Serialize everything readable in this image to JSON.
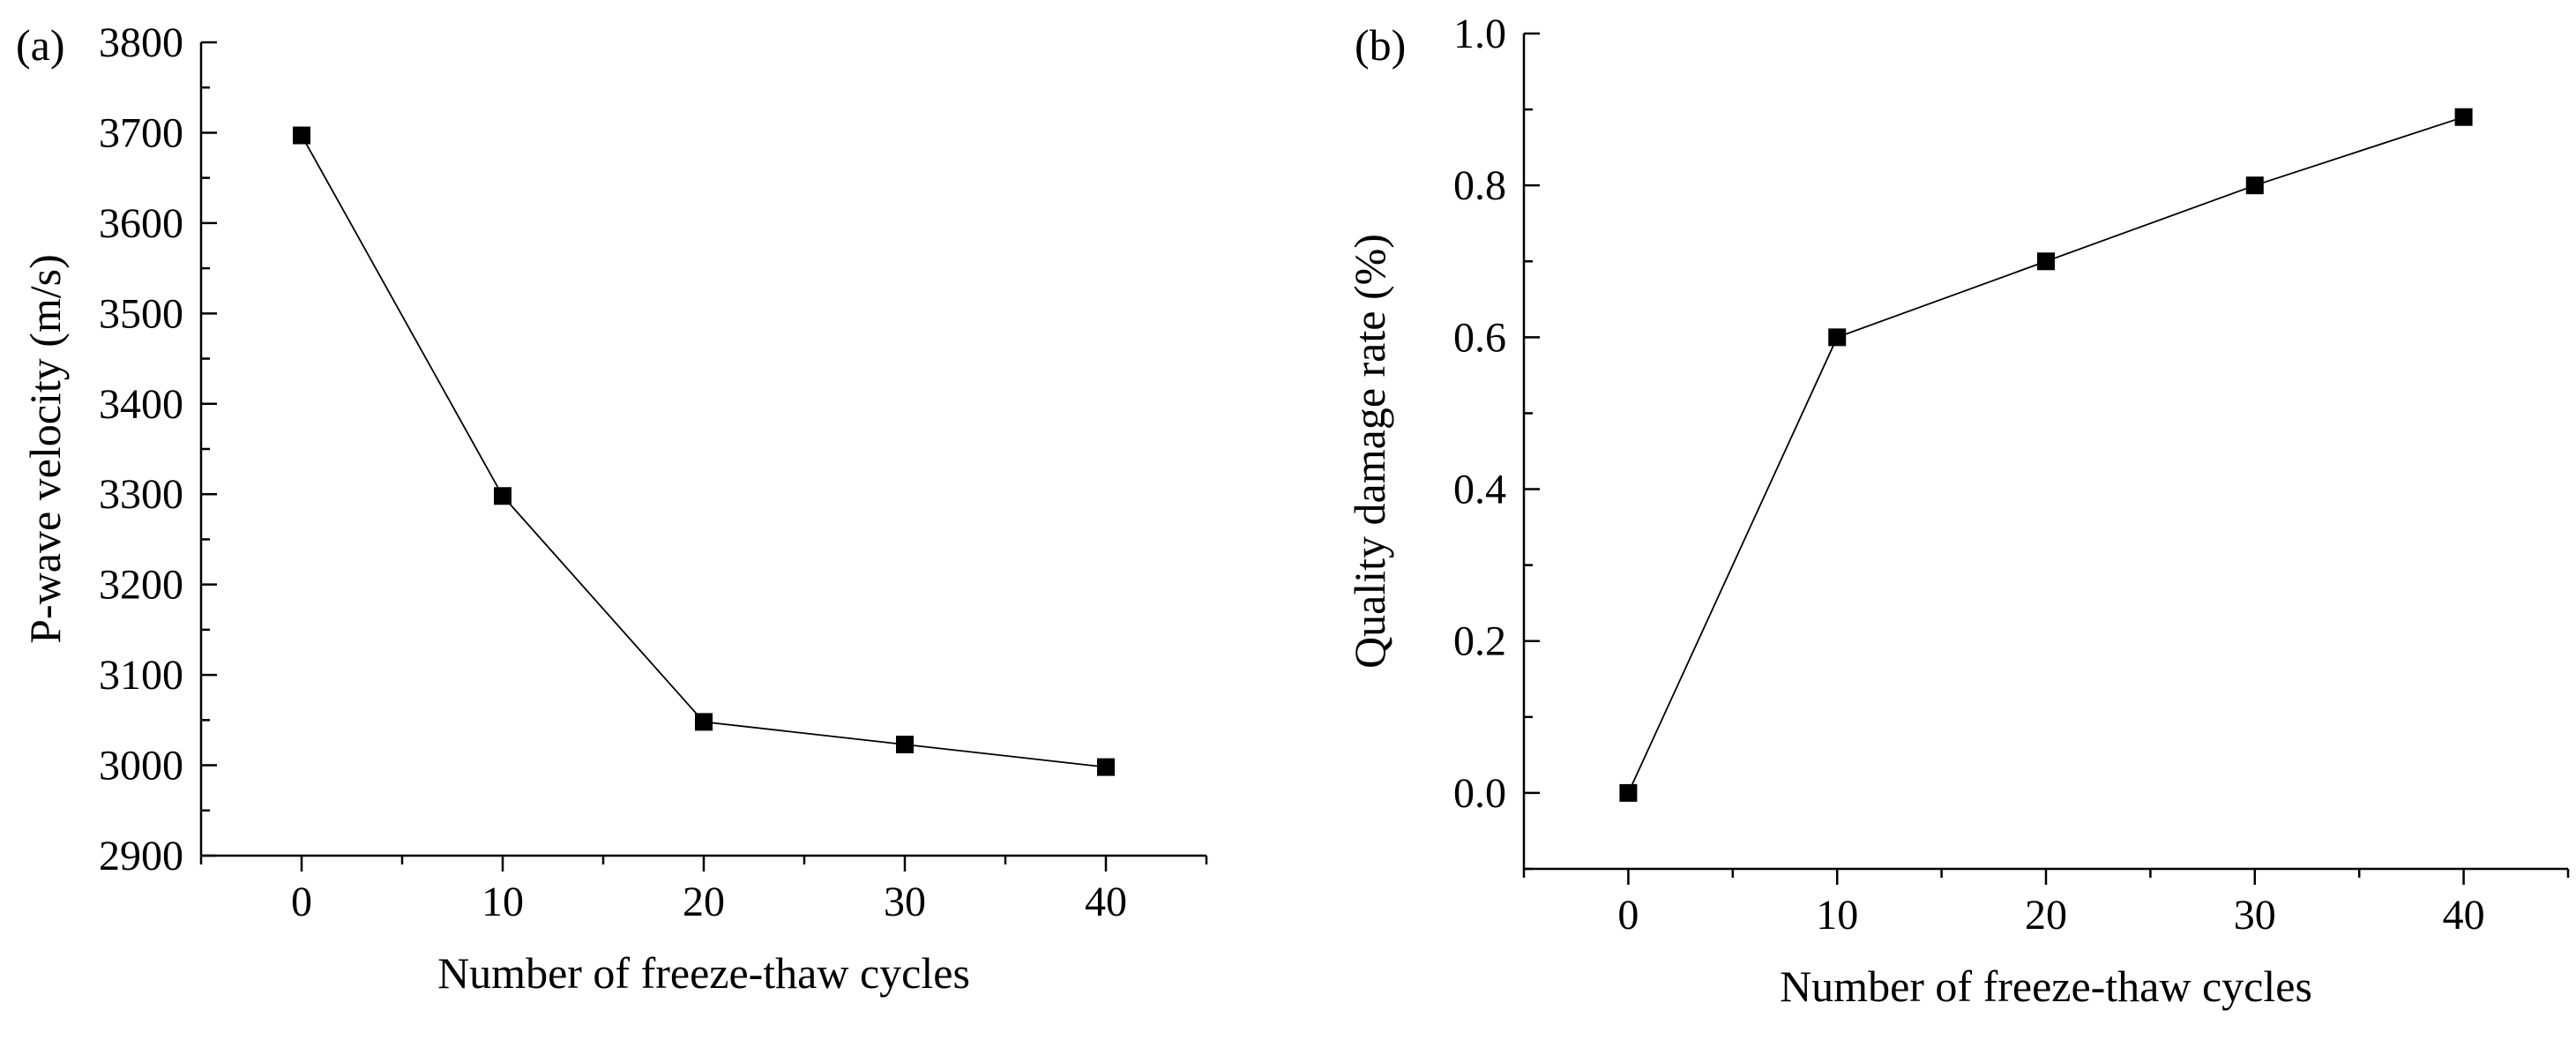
{
  "chart_data": [
    {
      "type": "line",
      "panel_label": "(a)",
      "title": "",
      "xlabel": "Number of freeze-thaw cycles",
      "ylabel": "P-wave velocity (m/s)",
      "xlim": [
        -5,
        45
      ],
      "ylim": [
        2900,
        3800
      ],
      "x_ticks": [
        0,
        10,
        20,
        30,
        40
      ],
      "x_tick_labels": [
        "0",
        "10",
        "20",
        "30",
        "40"
      ],
      "y_ticks": [
        2900,
        3000,
        3100,
        3200,
        3300,
        3400,
        3500,
        3600,
        3700,
        3800
      ],
      "y_tick_labels": [
        "2900",
        "3000",
        "3100",
        "3200",
        "3300",
        "3400",
        "3500",
        "3600",
        "3700",
        "3800"
      ],
      "x": [
        0,
        10,
        20,
        30,
        40
      ],
      "y": [
        3697,
        3298,
        3048,
        3023,
        2998
      ],
      "grid": false,
      "marker": "square",
      "color": "#000000"
    },
    {
      "type": "line",
      "panel_label": "(b)",
      "title": "",
      "xlabel": "Number of freeze-thaw cycles",
      "ylabel": "Quality damage rate (%)",
      "xlim": [
        -5,
        45
      ],
      "ylim": [
        -0.1,
        1.0
      ],
      "x_ticks": [
        0,
        10,
        20,
        30,
        40
      ],
      "x_tick_labels": [
        "0",
        "10",
        "20",
        "30",
        "40"
      ],
      "y_ticks": [
        0.0,
        0.2,
        0.4,
        0.6,
        0.8,
        1.0
      ],
      "y_tick_labels": [
        "0.0",
        "0.2",
        "0.4",
        "0.6",
        "0.8",
        "1.0"
      ],
      "x": [
        0,
        10,
        20,
        30,
        40
      ],
      "y": [
        0.0,
        0.6,
        0.7,
        0.8,
        0.89
      ],
      "grid": false,
      "marker": "square",
      "color": "#000000"
    }
  ]
}
